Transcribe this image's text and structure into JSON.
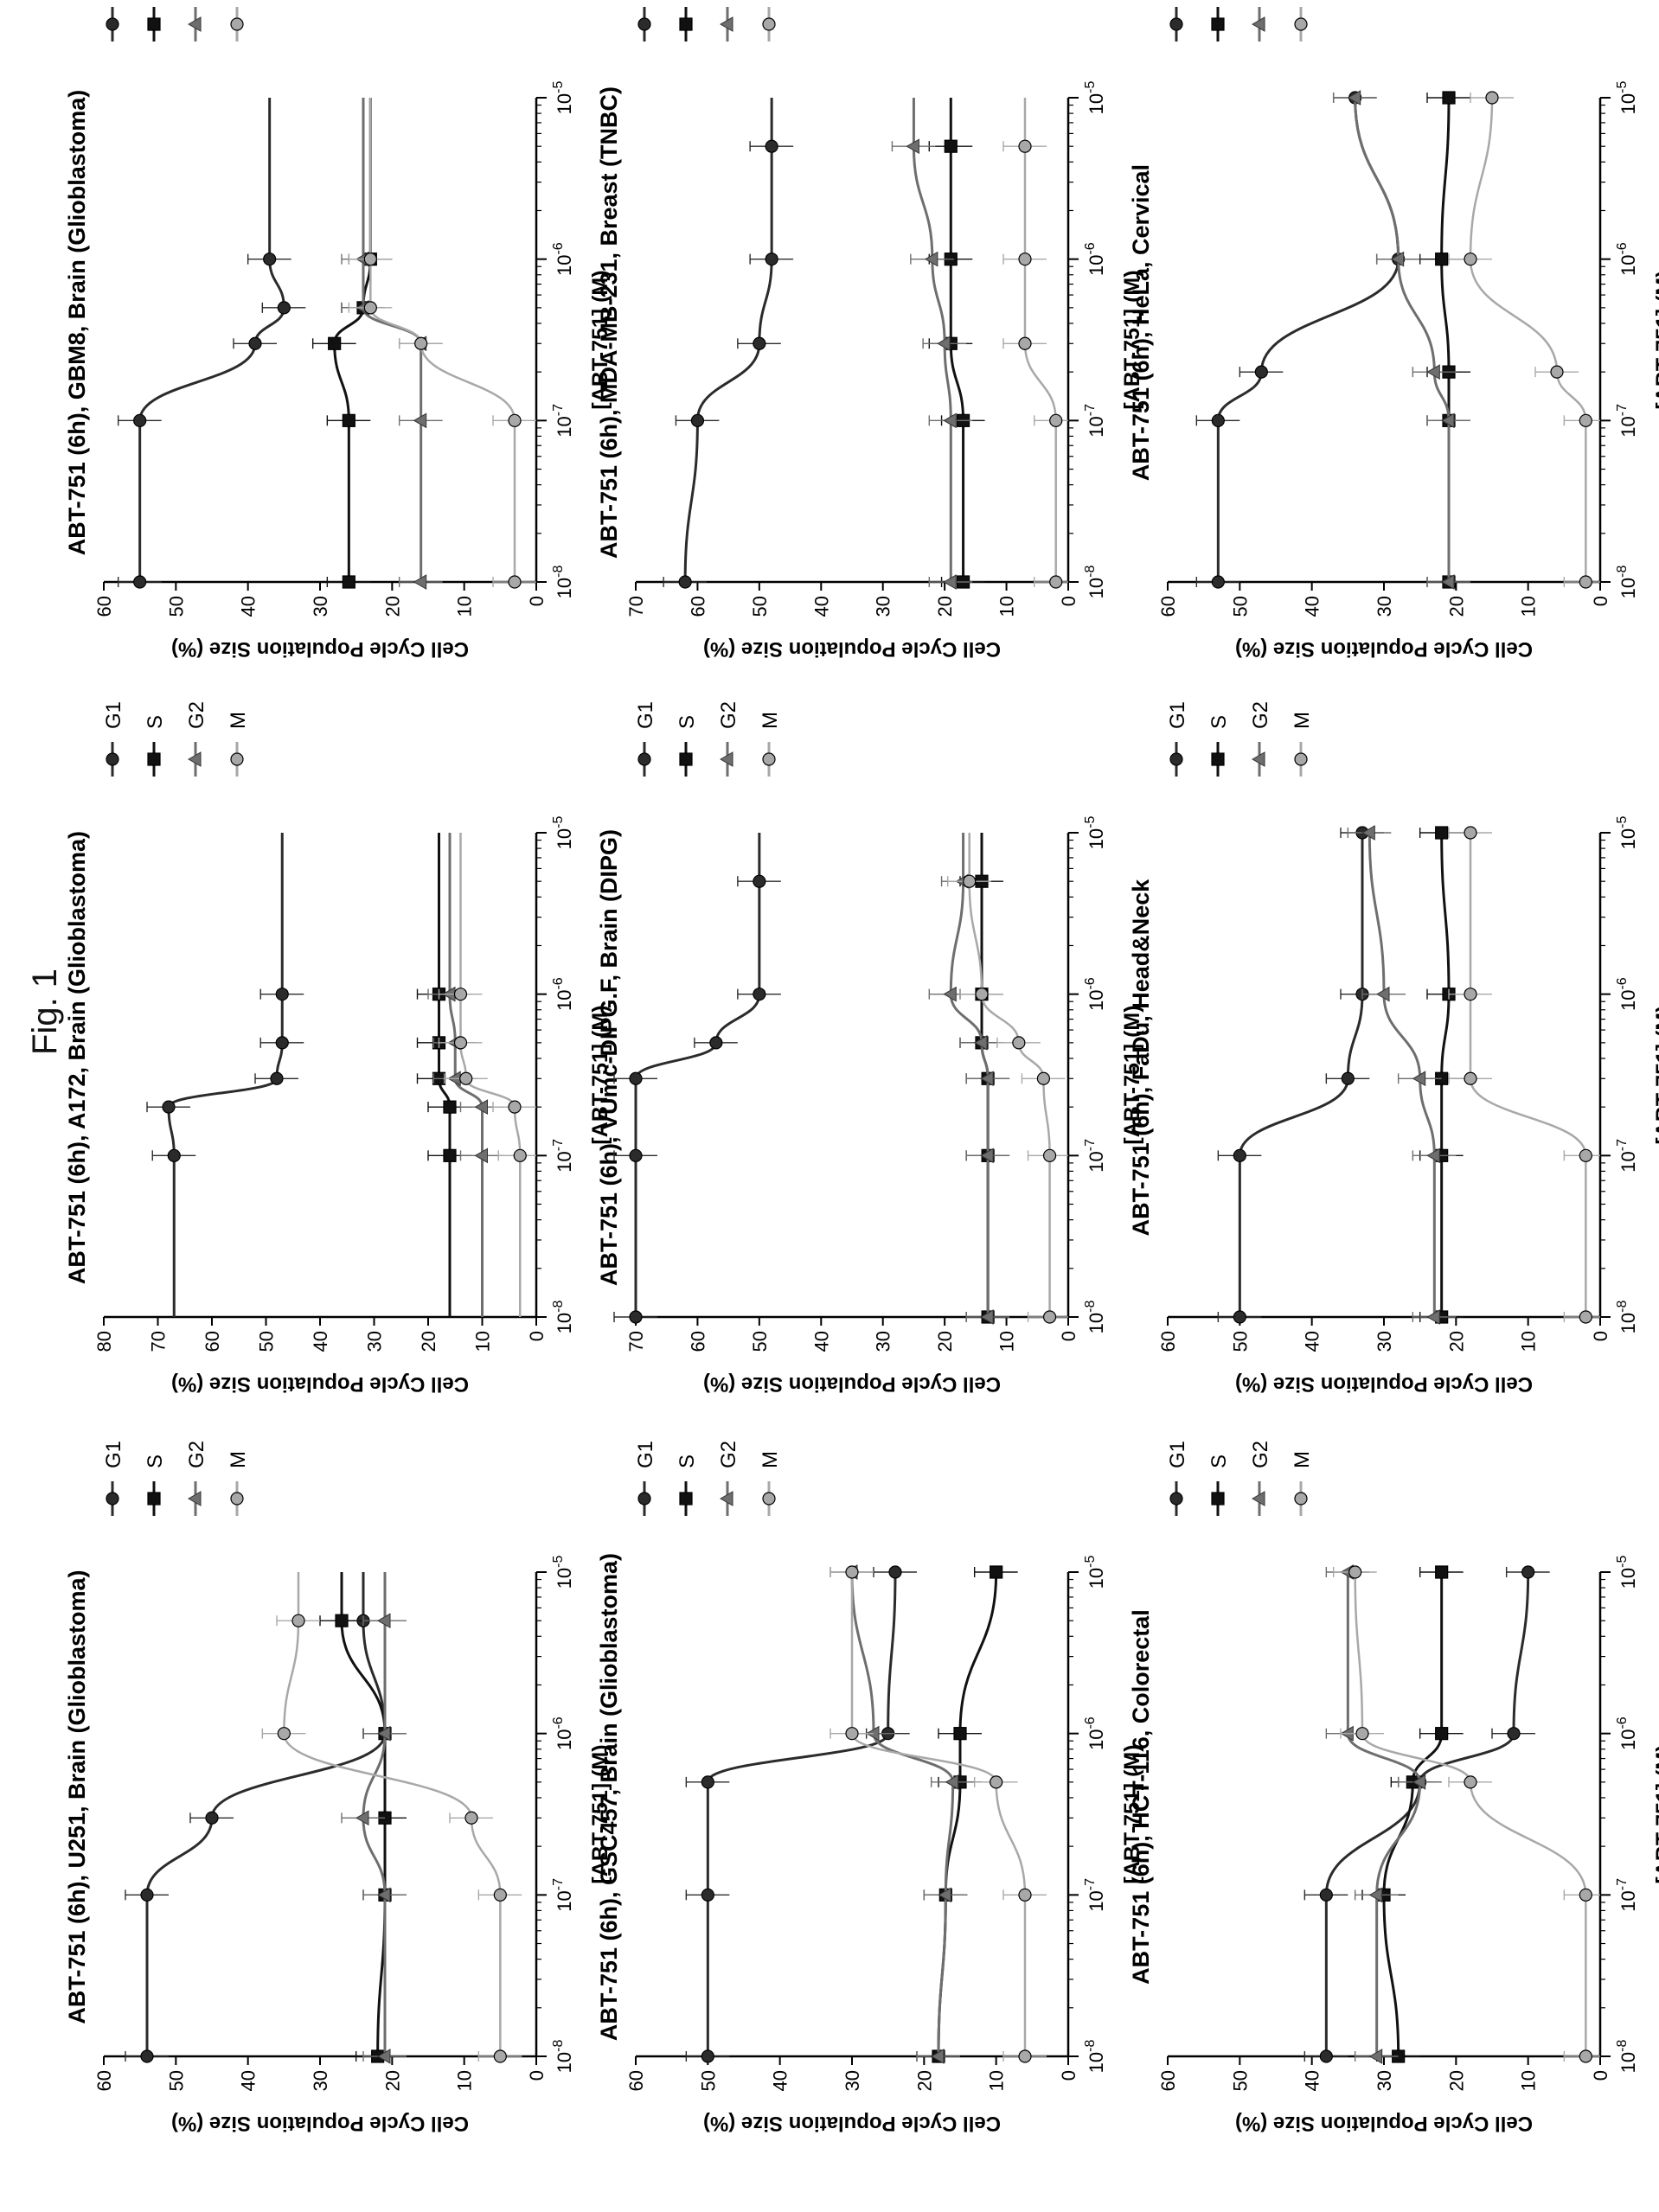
{
  "figure": {
    "label": "Fig. 1"
  },
  "shared": {
    "xlabel": "[ABT-751] (M)",
    "ylabel": "Cell Cycle Population Size (%)",
    "x_ticks": [
      "10-8",
      "10-7",
      "10-6",
      "10-5"
    ],
    "legend": [
      "G1",
      "S",
      "G2",
      "M"
    ],
    "colors": {
      "G1": "#2b2b2b",
      "S": "#111111",
      "G2": "#6e6e6e",
      "M": "#a8a8a8"
    }
  },
  "chart_data": [
    {
      "type": "line",
      "title": "ABT-751 (6h), U251, Brain (Glioblastoma)",
      "ylim": [
        0,
        60
      ],
      "yticks": [
        0,
        10,
        20,
        30,
        40,
        50,
        60
      ],
      "xscale": "log",
      "series": [
        {
          "name": "G1",
          "x": [
            1e-08,
            1e-07,
            3e-07,
            1e-06,
            5e-06
          ],
          "y": [
            54,
            54,
            45,
            21,
            24
          ]
        },
        {
          "name": "S",
          "x": [
            1e-08,
            1e-07,
            3e-07,
            1e-06,
            5e-06
          ],
          "y": [
            22,
            21,
            21,
            21,
            27
          ]
        },
        {
          "name": "G2",
          "x": [
            1e-08,
            1e-07,
            3e-07,
            1e-06,
            5e-06
          ],
          "y": [
            21,
            21,
            24,
            21,
            21
          ]
        },
        {
          "name": "M",
          "x": [
            1e-08,
            1e-07,
            3e-07,
            1e-06,
            5e-06
          ],
          "y": [
            5,
            5,
            9,
            35,
            33
          ]
        }
      ]
    },
    {
      "type": "line",
      "title": "ABT-751 (6h), A172, Brain (Glioblastoma)",
      "ylim": [
        0,
        80
      ],
      "yticks": [
        0,
        10,
        20,
        30,
        40,
        50,
        60,
        70,
        80
      ],
      "xscale": "log",
      "series": [
        {
          "name": "G1",
          "x": [
            1e-07,
            2e-07,
            3e-07,
            5e-07,
            1e-06
          ],
          "y": [
            67,
            68,
            48,
            47,
            47
          ]
        },
        {
          "name": "S",
          "x": [
            1e-07,
            2e-07,
            3e-07,
            5e-07,
            1e-06
          ],
          "y": [
            16,
            16,
            18,
            18,
            18
          ]
        },
        {
          "name": "G2",
          "x": [
            1e-07,
            2e-07,
            3e-07,
            5e-07,
            1e-06
          ],
          "y": [
            10,
            10,
            15,
            15,
            16
          ]
        },
        {
          "name": "M",
          "x": [
            1e-07,
            2e-07,
            3e-07,
            5e-07,
            1e-06
          ],
          "y": [
            3,
            4,
            13,
            14,
            14
          ]
        }
      ]
    },
    {
      "type": "line",
      "title": "ABT-751 (6h), GBM8, Brain (Glioblastoma)",
      "ylim": [
        0,
        60
      ],
      "yticks": [
        0,
        10,
        20,
        30,
        40,
        50,
        60
      ],
      "xscale": "log",
      "series": [
        {
          "name": "G1",
          "x": [
            1e-08,
            1e-07,
            3e-07,
            5e-07,
            1e-06
          ],
          "y": [
            55,
            55,
            39,
            35,
            37
          ]
        },
        {
          "name": "S",
          "x": [
            1e-08,
            1e-07,
            3e-07,
            5e-07,
            1e-06
          ],
          "y": [
            26,
            26,
            28,
            24,
            23
          ]
        },
        {
          "name": "G2",
          "x": [
            1e-08,
            1e-07,
            3e-07,
            5e-07,
            1e-06
          ],
          "y": [
            16,
            16,
            16,
            24,
            24
          ]
        },
        {
          "name": "M",
          "x": [
            1e-08,
            1e-07,
            3e-07,
            5e-07,
            1e-06
          ],
          "y": [
            3,
            3,
            16,
            23,
            23
          ]
        }
      ]
    },
    {
      "type": "line",
      "title": "ABT-751 (6h), GSC457, Brain (Glioblastoma)",
      "ylim": [
        0,
        60
      ],
      "yticks": [
        0,
        10,
        20,
        30,
        40,
        50,
        60
      ],
      "xscale": "log",
      "series": [
        {
          "name": "G1",
          "x": [
            1e-08,
            1e-07,
            5e-07,
            1e-06,
            1e-05
          ],
          "y": [
            50,
            50,
            50,
            25,
            24
          ]
        },
        {
          "name": "S",
          "x": [
            1e-08,
            1e-07,
            5e-07,
            1e-06,
            1e-05
          ],
          "y": [
            18,
            17,
            15,
            15,
            10
          ]
        },
        {
          "name": "G2",
          "x": [
            1e-08,
            1e-07,
            5e-07,
            1e-06,
            1e-05
          ],
          "y": [
            18,
            17,
            16,
            27,
            30
          ]
        },
        {
          "name": "M",
          "x": [
            1e-08,
            1e-07,
            5e-07,
            1e-06,
            1e-05
          ],
          "y": [
            6,
            6,
            10,
            30,
            30
          ]
        }
      ]
    },
    {
      "type": "line",
      "title": "ABT-751 (6h), VUmc-DIPG.F, Brain (DIPG)",
      "ylim": [
        0,
        70
      ],
      "yticks": [
        0,
        10,
        20,
        30,
        40,
        50,
        60,
        70
      ],
      "xscale": "log",
      "series": [
        {
          "name": "G1",
          "x": [
            1e-08,
            1e-07,
            3e-07,
            5e-07,
            1e-06,
            5e-06
          ],
          "y": [
            70,
            70,
            70,
            57,
            50,
            50
          ]
        },
        {
          "name": "S",
          "x": [
            1e-08,
            1e-07,
            3e-07,
            5e-07,
            1e-06,
            5e-06
          ],
          "y": [
            13,
            13,
            13,
            14,
            14,
            14
          ]
        },
        {
          "name": "G2",
          "x": [
            1e-08,
            1e-07,
            3e-07,
            5e-07,
            1e-06,
            5e-06
          ],
          "y": [
            13,
            13,
            13,
            14,
            19,
            17
          ]
        },
        {
          "name": "M",
          "x": [
            1e-08,
            1e-07,
            3e-07,
            5e-07,
            1e-06,
            5e-06
          ],
          "y": [
            3,
            3,
            4,
            8,
            14,
            16
          ]
        }
      ]
    },
    {
      "type": "line",
      "title": "ABT-751 (6h), MDA-MB-231, Breast (TNBC)",
      "ylim": [
        0,
        70
      ],
      "yticks": [
        0,
        10,
        20,
        30,
        40,
        50,
        60,
        70
      ],
      "xscale": "log",
      "series": [
        {
          "name": "G1",
          "x": [
            1e-08,
            1e-07,
            3e-07,
            1e-06,
            5e-06
          ],
          "y": [
            62,
            60,
            50,
            48,
            48
          ]
        },
        {
          "name": "S",
          "x": [
            1e-08,
            1e-07,
            3e-07,
            1e-06,
            5e-06
          ],
          "y": [
            17,
            17,
            19,
            19,
            19
          ]
        },
        {
          "name": "G2",
          "x": [
            1e-08,
            1e-07,
            3e-07,
            1e-06,
            5e-06
          ],
          "y": [
            19,
            19,
            20,
            22,
            25
          ]
        },
        {
          "name": "M",
          "x": [
            1e-08,
            1e-07,
            3e-07,
            1e-06,
            5e-06
          ],
          "y": [
            2,
            2,
            7,
            7,
            7
          ]
        }
      ]
    },
    {
      "type": "line",
      "title": "ABT-751 (6h), HCT-116, Colorectal",
      "ylim": [
        0,
        60
      ],
      "yticks": [
        0,
        10,
        20,
        30,
        40,
        50,
        60
      ],
      "xscale": "log",
      "series": [
        {
          "name": "G1",
          "x": [
            1e-08,
            1e-07,
            5e-07,
            1e-06,
            1e-05
          ],
          "y": [
            38,
            38,
            25,
            12,
            10
          ]
        },
        {
          "name": "S",
          "x": [
            1e-08,
            1e-07,
            5e-07,
            1e-06,
            1e-05
          ],
          "y": [
            28,
            30,
            26,
            22,
            22
          ]
        },
        {
          "name": "G2",
          "x": [
            1e-08,
            1e-07,
            5e-07,
            1e-06,
            1e-05
          ],
          "y": [
            31,
            31,
            25,
            35,
            35
          ]
        },
        {
          "name": "M",
          "x": [
            1e-08,
            1e-07,
            5e-07,
            1e-06,
            1e-05
          ],
          "y": [
            2,
            2,
            18,
            33,
            34
          ]
        }
      ]
    },
    {
      "type": "line",
      "title": "ABT-751 (6h), FaDu, Head&Neck",
      "ylim": [
        0,
        60
      ],
      "yticks": [
        0,
        10,
        20,
        30,
        40,
        50,
        60
      ],
      "xscale": "log",
      "series": [
        {
          "name": "G1",
          "x": [
            1e-08,
            1e-07,
            3e-07,
            1e-06,
            1e-05
          ],
          "y": [
            50,
            50,
            35,
            33,
            33
          ]
        },
        {
          "name": "S",
          "x": [
            1e-08,
            1e-07,
            3e-07,
            1e-06,
            1e-05
          ],
          "y": [
            22,
            22,
            22,
            21,
            22
          ]
        },
        {
          "name": "G2",
          "x": [
            1e-08,
            1e-07,
            3e-07,
            1e-06,
            1e-05
          ],
          "y": [
            23,
            23,
            25,
            30,
            32
          ]
        },
        {
          "name": "M",
          "x": [
            1e-08,
            1e-07,
            3e-07,
            1e-06,
            1e-05
          ],
          "y": [
            2,
            2,
            18,
            18,
            18
          ]
        }
      ]
    },
    {
      "type": "line",
      "title": "ABT-751 (6h), HeLa, Cervical",
      "ylim": [
        0,
        60
      ],
      "yticks": [
        0,
        10,
        20,
        30,
        40,
        50,
        60
      ],
      "xscale": "log",
      "series": [
        {
          "name": "G1",
          "x": [
            1e-08,
            1e-07,
            2e-07,
            1e-06,
            1e-05
          ],
          "y": [
            53,
            53,
            47,
            28,
            34
          ]
        },
        {
          "name": "S",
          "x": [
            1e-08,
            1e-07,
            2e-07,
            1e-06,
            1e-05
          ],
          "y": [
            21,
            21,
            21,
            22,
            21
          ]
        },
        {
          "name": "G2",
          "x": [
            1e-08,
            1e-07,
            2e-07,
            1e-06,
            1e-05
          ],
          "y": [
            21,
            21,
            23,
            28,
            34
          ]
        },
        {
          "name": "M",
          "x": [
            1e-08,
            1e-07,
            2e-07,
            1e-06,
            1e-05
          ],
          "y": [
            2,
            2,
            6,
            18,
            15
          ]
        }
      ]
    }
  ]
}
